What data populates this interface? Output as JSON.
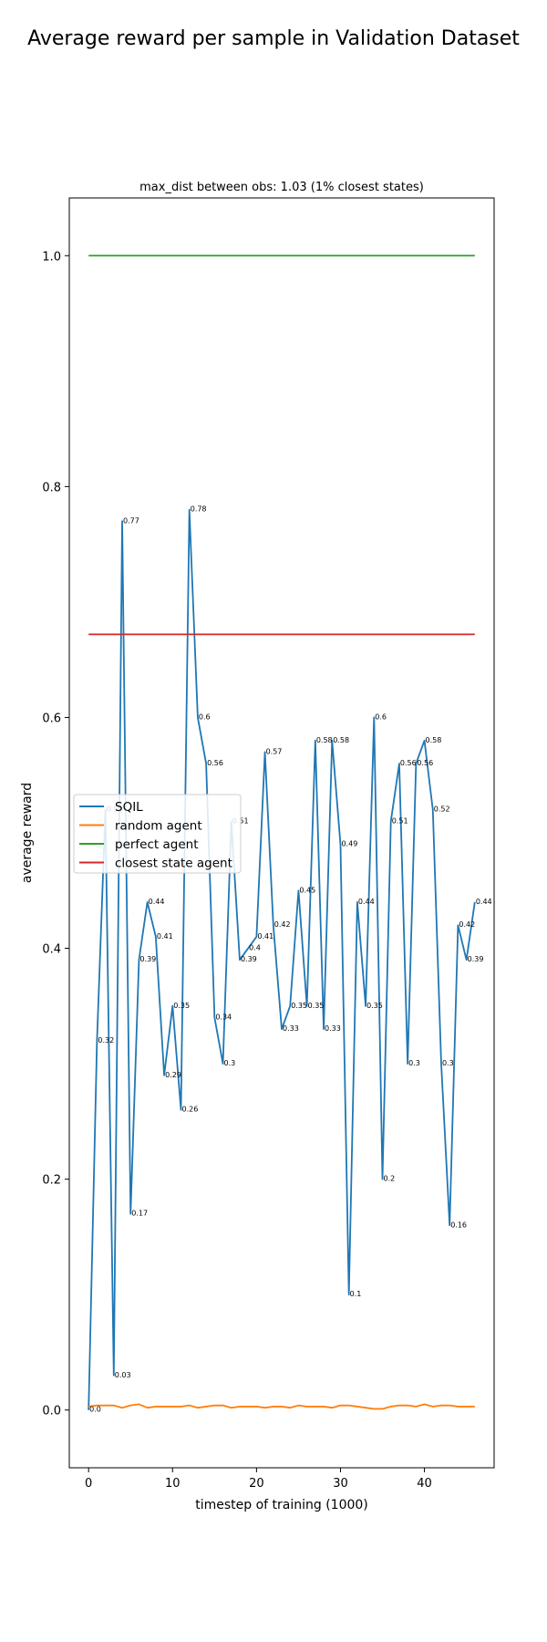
{
  "figure": {
    "title": "Average reward per sample in Validation Dataset"
  },
  "chart_data": {
    "type": "line",
    "subtitle": "max_dist between obs: 1.03 (1% closest states)",
    "xlabel": "timestep of training (1000)",
    "ylabel": "average reward",
    "xlim": [
      -2.3,
      48.3
    ],
    "ylim": [
      -0.05,
      1.05
    ],
    "xticks": [
      0,
      10,
      20,
      30,
      40
    ],
    "yticks": [
      0.0,
      0.2,
      0.4,
      0.6,
      0.8,
      1.0
    ],
    "ytick_labels": [
      "0.0",
      "0.2",
      "0.4",
      "0.6",
      "0.8",
      "1.0"
    ],
    "grid": false,
    "legend_position": "center-left",
    "x": [
      0,
      1,
      2,
      3,
      4,
      5,
      6,
      7,
      8,
      9,
      10,
      11,
      12,
      13,
      14,
      15,
      16,
      17,
      18,
      19,
      20,
      21,
      22,
      23,
      24,
      25,
      26,
      27,
      28,
      29,
      30,
      31,
      32,
      33,
      34,
      35,
      36,
      37,
      38,
      39,
      40,
      41,
      42,
      43,
      44,
      45,
      46
    ],
    "series": [
      {
        "name": "SQIL",
        "color": "#1f77b4",
        "values": [
          0.0,
          0.32,
          0.52,
          0.03,
          0.77,
          0.17,
          0.39,
          0.44,
          0.41,
          0.29,
          0.35,
          0.26,
          0.78,
          0.6,
          0.56,
          0.34,
          0.3,
          0.51,
          0.39,
          0.4,
          0.41,
          0.57,
          0.42,
          0.33,
          0.35,
          0.45,
          0.35,
          0.58,
          0.33,
          0.58,
          0.49,
          0.1,
          0.44,
          0.35,
          0.6,
          0.2,
          0.51,
          0.56,
          0.3,
          0.56,
          0.58,
          0.52,
          0.3,
          0.16,
          0.42,
          0.39,
          0.44
        ],
        "labels": [
          "0.0",
          "0.32",
          "0.52",
          "0.03",
          "0.77",
          "0.17",
          "0.39",
          "0.44",
          "0.41",
          "0.29",
          "0.35",
          "0.26",
          "0.78",
          "0.6",
          "0.56",
          "0.34",
          "0.3",
          "0.51",
          "0.39",
          "0.4",
          "0.41",
          "0.57",
          "0.42",
          "0.33",
          "0.35",
          "0.45",
          "0.35",
          "0.58",
          "0.33",
          "0.58",
          "0.49",
          "0.1",
          "0.44",
          "0.35",
          "0.6",
          "0.2",
          "0.51",
          "0.56",
          "0.3",
          "0.56",
          "0.58",
          "0.52",
          "0.3",
          "0.16",
          "0.42",
          "0.39",
          "0.44"
        ]
      },
      {
        "name": "random agent",
        "color": "#ff7f0e",
        "values": [
          0.003,
          0.004,
          0.004,
          0.004,
          0.002,
          0.004,
          0.005,
          0.002,
          0.003,
          0.003,
          0.003,
          0.003,
          0.004,
          0.002,
          0.003,
          0.004,
          0.004,
          0.002,
          0.003,
          0.003,
          0.003,
          0.002,
          0.003,
          0.003,
          0.002,
          0.004,
          0.003,
          0.003,
          0.003,
          0.002,
          0.004,
          0.004,
          0.003,
          0.002,
          0.001,
          0.001,
          0.003,
          0.004,
          0.004,
          0.003,
          0.005,
          0.003,
          0.004,
          0.004,
          0.003,
          0.003,
          0.003
        ]
      },
      {
        "name": "perfect agent",
        "color": "#2ca02c",
        "values": [
          1.0,
          1.0,
          1.0,
          1.0,
          1.0,
          1.0,
          1.0,
          1.0,
          1.0,
          1.0,
          1.0,
          1.0,
          1.0,
          1.0,
          1.0,
          1.0,
          1.0,
          1.0,
          1.0,
          1.0,
          1.0,
          1.0,
          1.0,
          1.0,
          1.0,
          1.0,
          1.0,
          1.0,
          1.0,
          1.0,
          1.0,
          1.0,
          1.0,
          1.0,
          1.0,
          1.0,
          1.0,
          1.0,
          1.0,
          1.0,
          1.0,
          1.0,
          1.0,
          1.0,
          1.0,
          1.0,
          1.0
        ]
      },
      {
        "name": "closest state agent",
        "color": "#d62728",
        "values": [
          0.672,
          0.672,
          0.672,
          0.672,
          0.672,
          0.672,
          0.672,
          0.672,
          0.672,
          0.672,
          0.672,
          0.672,
          0.672,
          0.672,
          0.672,
          0.672,
          0.672,
          0.672,
          0.672,
          0.672,
          0.672,
          0.672,
          0.672,
          0.672,
          0.672,
          0.672,
          0.672,
          0.672,
          0.672,
          0.672,
          0.672,
          0.672,
          0.672,
          0.672,
          0.672,
          0.672,
          0.672,
          0.672,
          0.672,
          0.672,
          0.672,
          0.672,
          0.672,
          0.672,
          0.672,
          0.672,
          0.672
        ]
      }
    ]
  }
}
